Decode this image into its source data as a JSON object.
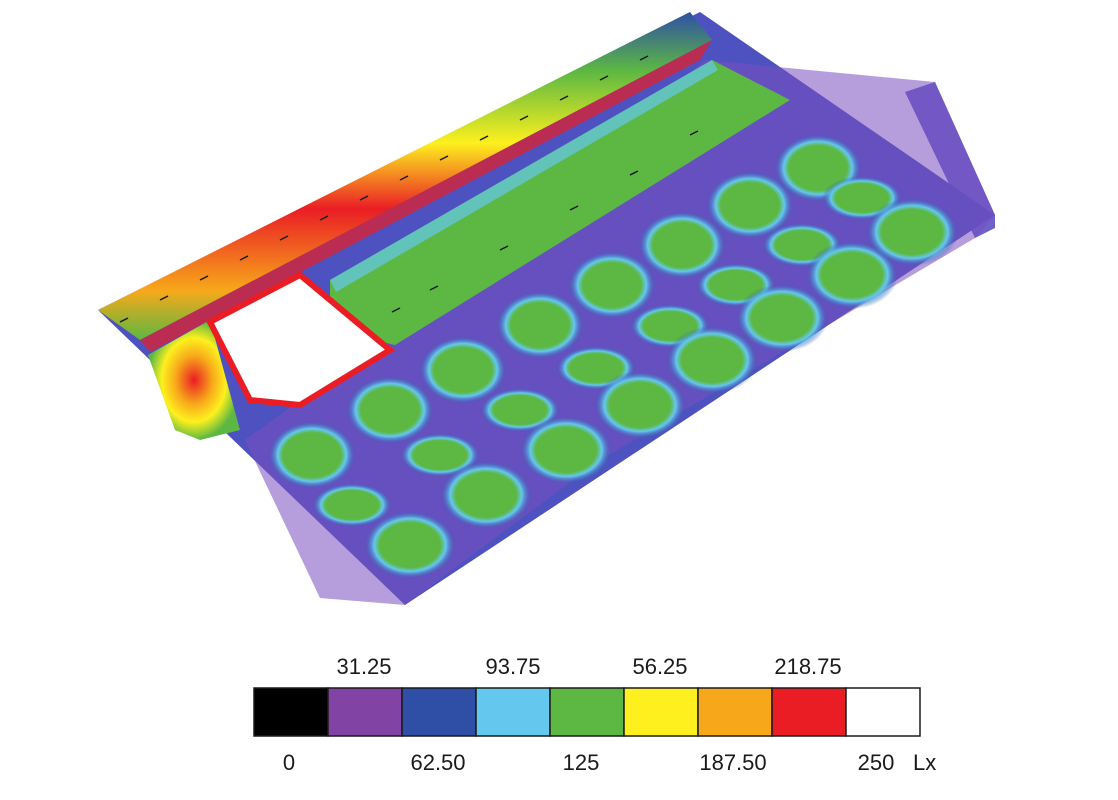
{
  "chart_data": {
    "type": "heatmap",
    "unit": "Lx",
    "color_scale": [
      {
        "color": "#000000"
      },
      {
        "color": "#8244a4"
      },
      {
        "color": "#2f4fa6"
      },
      {
        "color": "#64c8ee"
      },
      {
        "color": "#5cb842"
      },
      {
        "color": "#fdf01e"
      },
      {
        "color": "#f7a81a"
      },
      {
        "color": "#ea1d25"
      },
      {
        "color": "#ffffff"
      }
    ],
    "bottom_labels": [
      "0",
      "62.50",
      "125",
      "187.50",
      "250"
    ],
    "top_labels": [
      "31.25",
      "93.75",
      "56.25",
      "218.75"
    ]
  }
}
